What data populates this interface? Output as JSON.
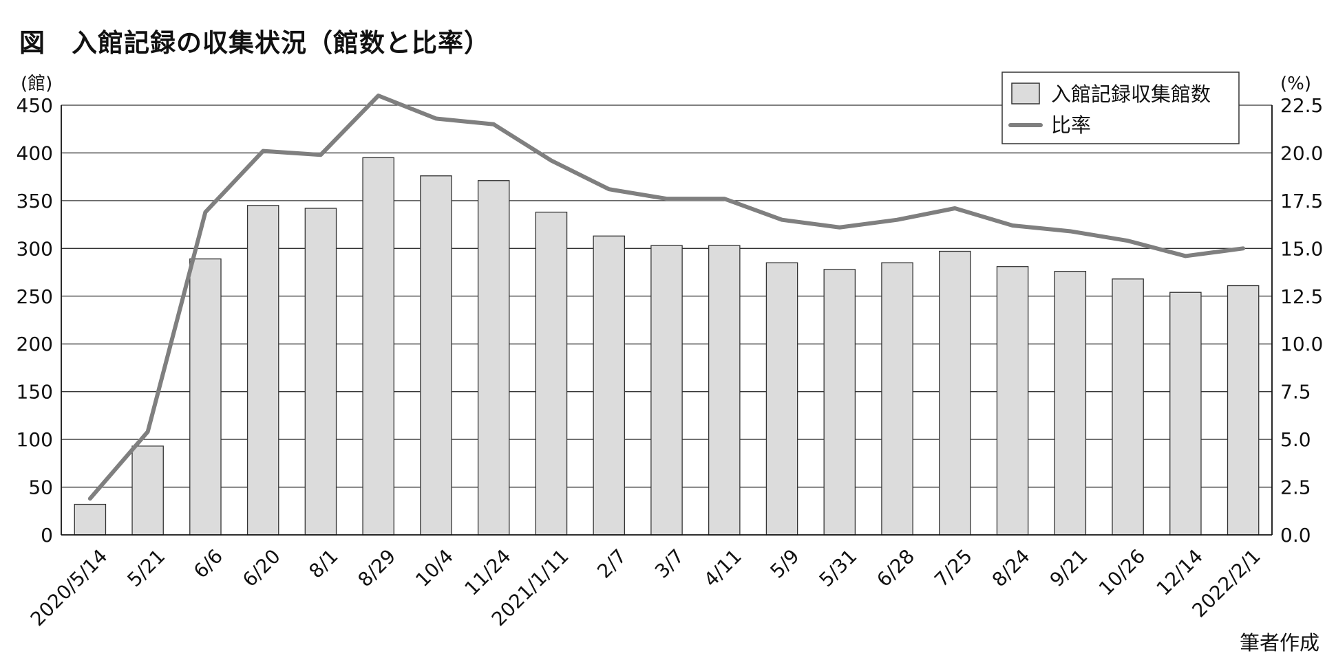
{
  "page": {
    "title": "図　入館記録の収集状況（館数と比率）",
    "source_note": "筆者作成"
  },
  "chart_data": {
    "type": "bar",
    "categories": [
      "2020/5/14",
      "5/21",
      "6/6",
      "6/20",
      "8/1",
      "8/29",
      "10/4",
      "11/24",
      "2021/1/11",
      "2/7",
      "3/7",
      "4/11",
      "5/9",
      "5/31",
      "6/28",
      "7/25",
      "8/24",
      "9/21",
      "10/26",
      "12/14",
      "2022/2/1"
    ],
    "series": [
      {
        "name": "入館記録収集館数",
        "type": "bar",
        "axis": "left",
        "values": [
          32,
          93,
          289,
          345,
          342,
          395,
          376,
          371,
          338,
          313,
          303,
          303,
          285,
          278,
          285,
          297,
          281,
          276,
          268,
          254,
          261
        ]
      },
      {
        "name": "比率",
        "type": "line",
        "axis": "right",
        "values": [
          1.9,
          5.4,
          16.9,
          20.1,
          19.9,
          23.0,
          21.8,
          21.5,
          19.6,
          18.1,
          17.6,
          17.6,
          16.5,
          16.1,
          16.5,
          17.1,
          16.2,
          15.9,
          15.4,
          14.6,
          15.0
        ]
      }
    ],
    "y_left": {
      "unit": "(館)",
      "range": [
        0,
        450
      ],
      "ticks": [
        "0",
        "50",
        "100",
        "150",
        "200",
        "250",
        "300",
        "350",
        "400",
        "450"
      ]
    },
    "y_right": {
      "unit": "(%)",
      "range": [
        0,
        22.5
      ],
      "ticks": [
        "0.0",
        "2.5",
        "5.0",
        "7.5",
        "10.0",
        "12.5",
        "15.0",
        "17.5",
        "20.0",
        "22.5"
      ]
    },
    "grid": "horizontal",
    "legend_position": "top-right",
    "colors": {
      "bar_fill": "#dcdcdc",
      "bar_stroke": "#333333",
      "line": "#7f7f7f",
      "grid": "#333333"
    }
  }
}
